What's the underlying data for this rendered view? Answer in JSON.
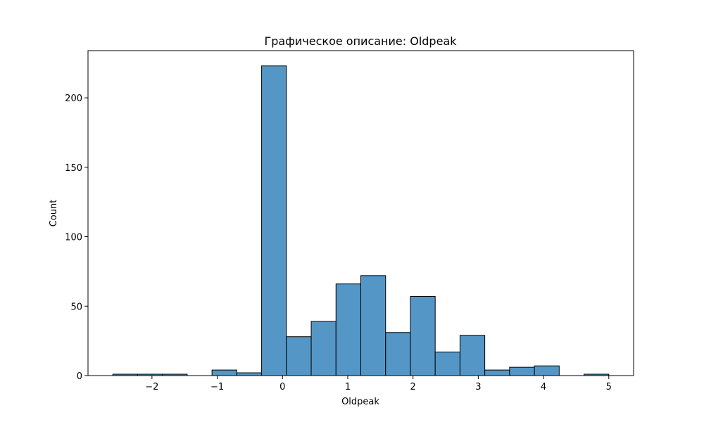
{
  "chart_data": {
    "type": "bar",
    "title": "Графическое описание: Oldpeak",
    "xlabel": "Oldpeak",
    "ylabel": "Count",
    "xlim": [
      -2.98,
      5.38
    ],
    "ylim": [
      0,
      234
    ],
    "xticks": [
      {
        "value": -2,
        "label": "−2"
      },
      {
        "value": -1,
        "label": "−1"
      },
      {
        "value": 0,
        "label": "0"
      },
      {
        "value": 1,
        "label": "1"
      },
      {
        "value": 2,
        "label": "2"
      },
      {
        "value": 3,
        "label": "3"
      },
      {
        "value": 4,
        "label": "4"
      },
      {
        "value": 5,
        "label": "5"
      }
    ],
    "yticks": [
      {
        "value": 0,
        "label": "0"
      },
      {
        "value": 50,
        "label": "50"
      },
      {
        "value": 100,
        "label": "100"
      },
      {
        "value": 150,
        "label": "150"
      },
      {
        "value": 200,
        "label": "200"
      }
    ],
    "grid": false,
    "bar_color": "#5497c6",
    "edge_color": "#000000",
    "bins": [
      {
        "x0": -2.6,
        "x1": -2.22,
        "count": 1
      },
      {
        "x0": -2.22,
        "x1": -1.84,
        "count": 1
      },
      {
        "x0": -1.84,
        "x1": -1.46,
        "count": 1
      },
      {
        "x0": -1.46,
        "x1": -1.08,
        "count": 0
      },
      {
        "x0": -1.08,
        "x1": -0.7,
        "count": 4
      },
      {
        "x0": -0.7,
        "x1": -0.32,
        "count": 2
      },
      {
        "x0": -0.32,
        "x1": 0.06,
        "count": 223
      },
      {
        "x0": 0.06,
        "x1": 0.44,
        "count": 28
      },
      {
        "x0": 0.44,
        "x1": 0.82,
        "count": 39
      },
      {
        "x0": 0.82,
        "x1": 1.2,
        "count": 66
      },
      {
        "x0": 1.2,
        "x1": 1.58,
        "count": 72
      },
      {
        "x0": 1.58,
        "x1": 1.96,
        "count": 31
      },
      {
        "x0": 1.96,
        "x1": 2.34,
        "count": 57
      },
      {
        "x0": 2.34,
        "x1": 2.72,
        "count": 17
      },
      {
        "x0": 2.72,
        "x1": 3.1,
        "count": 29
      },
      {
        "x0": 3.1,
        "x1": 3.48,
        "count": 4
      },
      {
        "x0": 3.48,
        "x1": 3.86,
        "count": 6
      },
      {
        "x0": 3.86,
        "x1": 4.24,
        "count": 7
      },
      {
        "x0": 4.24,
        "x1": 4.62,
        "count": 0
      },
      {
        "x0": 4.62,
        "x1": 5.0,
        "count": 1
      }
    ]
  }
}
